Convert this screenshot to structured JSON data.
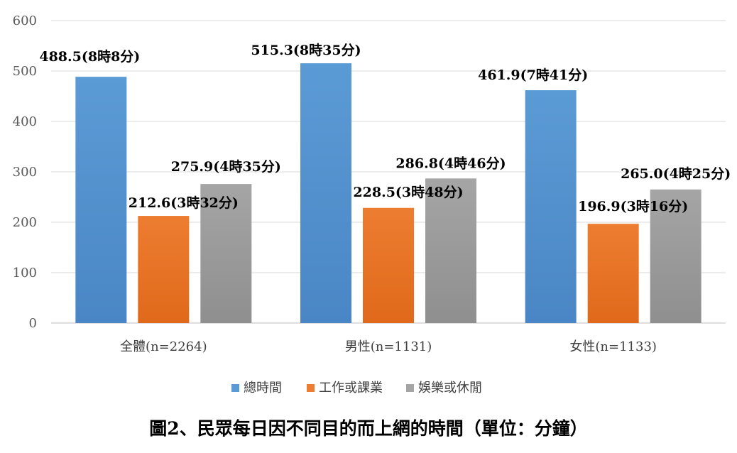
{
  "chart_data": {
    "type": "bar",
    "title": "",
    "xlabel": "",
    "ylabel": "",
    "ylim": [
      0,
      600
    ],
    "yticks": [
      0,
      100,
      200,
      300,
      400,
      500,
      600
    ],
    "grid": true,
    "legend_position": "bottom",
    "categories": [
      "全體(n=2264)",
      "男性(n=1131)",
      "女性(n=1133)"
    ],
    "series": [
      {
        "name": "總時間",
        "color": "#5B9BD5",
        "color_dark": "#4A86C5",
        "values": [
          488.5,
          515.3,
          461.9
        ],
        "labels": [
          "488.5(8時8分)",
          "515.3(8時35分)",
          "461.9(7時41分)"
        ]
      },
      {
        "name": "工作或課業",
        "color": "#ED7D31",
        "color_dark": "#E0691B",
        "values": [
          212.6,
          228.5,
          196.9
        ],
        "labels": [
          "212.6(3時32分)",
          "228.5(3時48分)",
          "196.9(3時16分)"
        ]
      },
      {
        "name": "娛樂或休閒",
        "color": "#A5A5A5",
        "color_dark": "#8F8F8F",
        "values": [
          275.9,
          286.8,
          265.0
        ],
        "labels": [
          "275.9(4時35分)",
          "286.8(4時46分)",
          "265.0(4時25分)"
        ]
      }
    ]
  },
  "caption": "圖2、民眾每日因不同目的而上網的時間（單位：分鐘）"
}
